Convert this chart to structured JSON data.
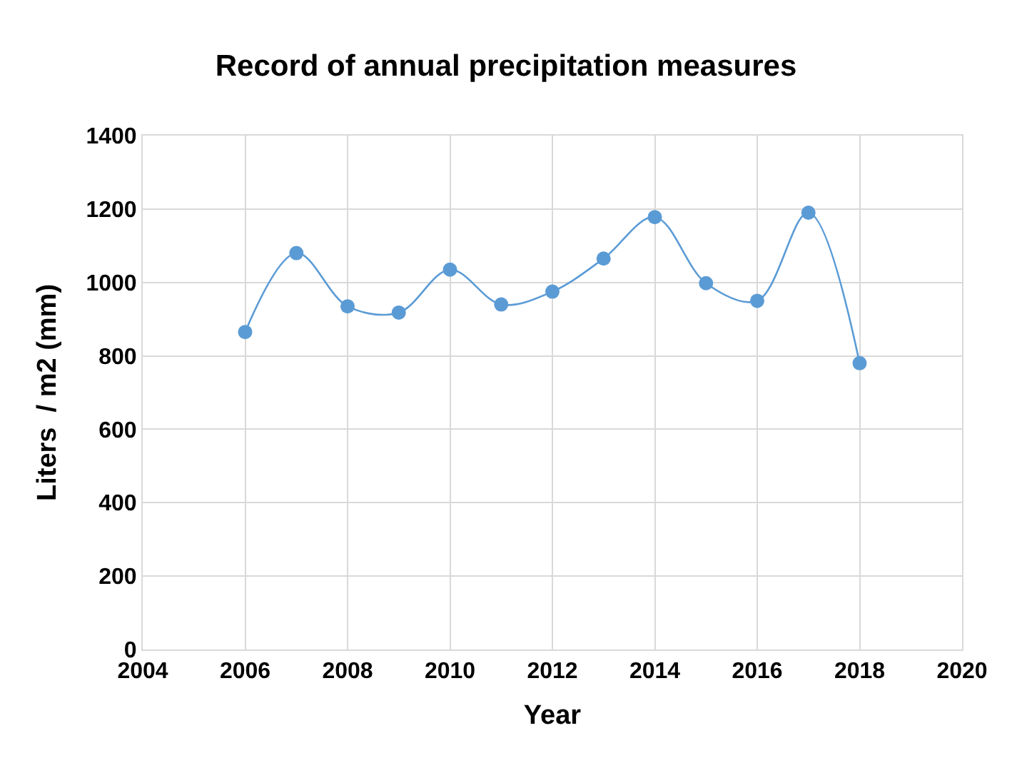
{
  "chart_data": {
    "type": "line",
    "title": "Record of annual precipitation measures",
    "xlabel": "Year",
    "ylabel": "Liters  / m2 (mm)",
    "x": [
      2006,
      2007,
      2008,
      2009,
      2010,
      2011,
      2012,
      2013,
      2014,
      2015,
      2016,
      2017,
      2018
    ],
    "series": [
      {
        "color": "#5b9bd5",
        "values": [
          865,
          1080,
          935,
          918,
          1035,
          940,
          975,
          1065,
          1178,
          998,
          950,
          1190,
          780
        ]
      }
    ],
    "xlim": [
      2004,
      2020
    ],
    "xticks": [
      2004,
      2006,
      2008,
      2010,
      2012,
      2014,
      2016,
      2018,
      2020
    ],
    "ylim": [
      0,
      1400
    ],
    "yticks": [
      0,
      200,
      400,
      600,
      800,
      1000,
      1200,
      1400
    ],
    "grid": true,
    "marker": "circle",
    "legend": false
  }
}
